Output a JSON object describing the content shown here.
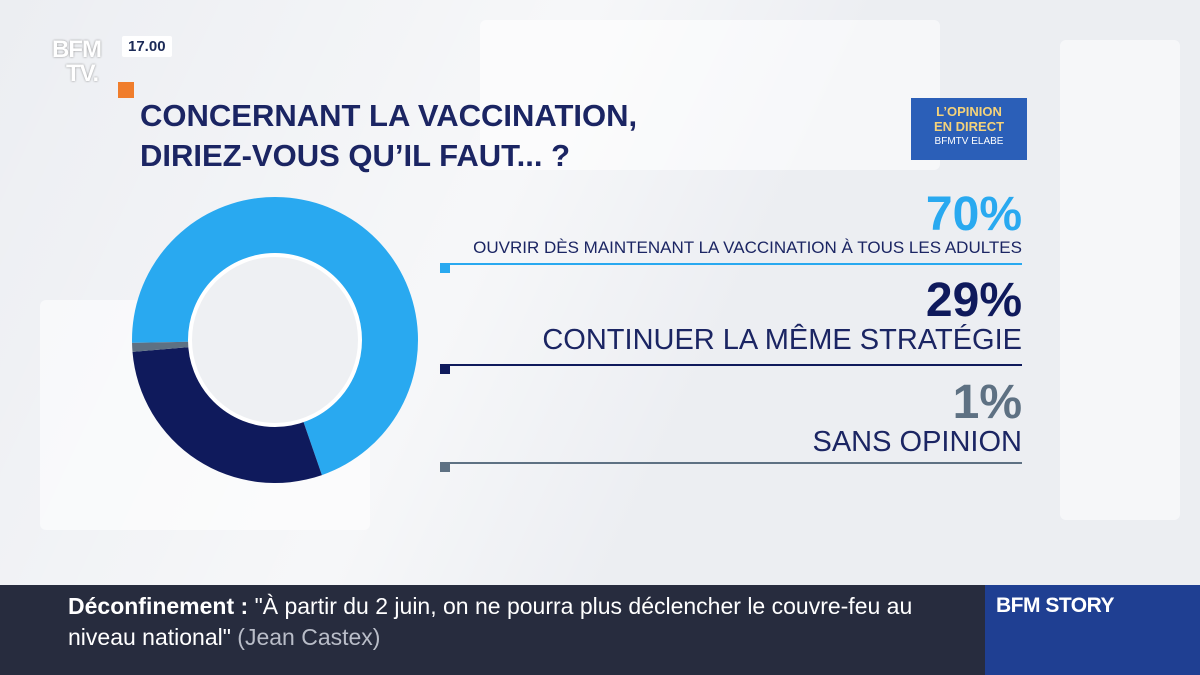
{
  "header": {
    "logo_line1": "BFM",
    "logo_line2": "TV.",
    "time": "17.00",
    "title": "CONCERNANT LA VACCINATION,\nDIRIEZ-VOUS QU’IL FAUT... ?"
  },
  "badge": {
    "line1": "L’OPINION",
    "line2": "EN DIRECT",
    "line3": "BFMTV ELABE"
  },
  "colors": {
    "accent_light_blue": "#29a9f0",
    "navy": "#0f1a5c",
    "slate": "#5e7183",
    "title_navy": "#1b2563"
  },
  "chart_data": {
    "type": "pie",
    "title": "CONCERNANT LA VACCINATION, DIRIEZ-VOUS QU’IL FAUT... ?",
    "categories": [
      "OUVRIR DÈS MAINTENANT LA VACCINATION À TOUS LES ADULTES",
      "CONTINUER LA MÊME STRATÉGIE",
      "SANS OPINION"
    ],
    "values": [
      70,
      29,
      1
    ],
    "value_labels": [
      "70%",
      "29%",
      "1%"
    ],
    "colors": [
      "#29a9f0",
      "#0f1a5c",
      "#5e7183"
    ],
    "donut": true
  },
  "ticker": {
    "keyword": "Déconfinement :",
    "quote": " \"À partir du 2 juin, on ne pourra plus déclencher le couvre-feu au niveau national\"",
    "source": " (Jean Castex)"
  },
  "story": {
    "label": "BFM STORY"
  }
}
